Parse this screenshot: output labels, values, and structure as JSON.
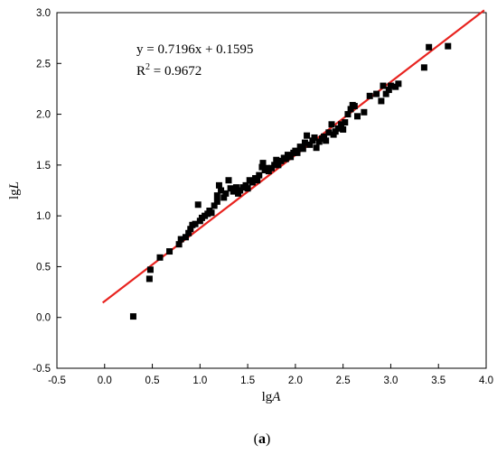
{
  "chart_data": {
    "type": "scatter",
    "xlabel_prefix": "lg",
    "xlabel_var": "A",
    "ylabel_prefix": "lg",
    "ylabel_var": "L",
    "xlim": [
      -0.5,
      4.0
    ],
    "ylim": [
      -0.5,
      3.0
    ],
    "xticks": [
      "-0.5",
      "0.0",
      "0.5",
      "1.0",
      "1.5",
      "2.0",
      "2.5",
      "3.0",
      "3.5",
      "4.0"
    ],
    "yticks": [
      "-0.5",
      "0.0",
      "0.5",
      "1.0",
      "1.5",
      "2.0",
      "2.5",
      "3.0"
    ],
    "grid": false,
    "annotation": {
      "equation": "y = 0.7196x + 0.1595",
      "r2_prefix": "R",
      "r2_sup": "2",
      "r2_suffix": " = 0.9672"
    },
    "series": [
      {
        "type": "scatter",
        "color": "#000000",
        "points": [
          [
            0.3,
            0.01
          ],
          [
            0.47,
            0.38
          ],
          [
            0.48,
            0.47
          ],
          [
            0.58,
            0.59
          ],
          [
            0.68,
            0.65
          ],
          [
            0.78,
            0.72
          ],
          [
            0.8,
            0.77
          ],
          [
            0.85,
            0.79
          ],
          [
            0.88,
            0.83
          ],
          [
            0.9,
            0.87
          ],
          [
            0.92,
            0.91
          ],
          [
            0.95,
            0.92
          ],
          [
            0.98,
            1.11
          ],
          [
            1.0,
            0.95
          ],
          [
            1.02,
            0.98
          ],
          [
            1.05,
            1.0
          ],
          [
            1.08,
            1.02
          ],
          [
            1.1,
            1.05
          ],
          [
            1.12,
            1.03
          ],
          [
            1.15,
            1.1
          ],
          [
            1.18,
            1.14
          ],
          [
            1.18,
            1.2
          ],
          [
            1.2,
            1.3
          ],
          [
            1.22,
            1.25
          ],
          [
            1.25,
            1.18
          ],
          [
            1.27,
            1.22
          ],
          [
            1.3,
            1.35
          ],
          [
            1.32,
            1.27
          ],
          [
            1.35,
            1.24
          ],
          [
            1.38,
            1.28
          ],
          [
            1.4,
            1.22
          ],
          [
            1.42,
            1.25
          ],
          [
            1.45,
            1.28
          ],
          [
            1.48,
            1.3
          ],
          [
            1.5,
            1.27
          ],
          [
            1.52,
            1.35
          ],
          [
            1.55,
            1.33
          ],
          [
            1.58,
            1.37
          ],
          [
            1.6,
            1.35
          ],
          [
            1.62,
            1.4
          ],
          [
            1.65,
            1.48
          ],
          [
            1.66,
            1.52
          ],
          [
            1.68,
            1.45
          ],
          [
            1.7,
            1.47
          ],
          [
            1.72,
            1.44
          ],
          [
            1.75,
            1.47
          ],
          [
            1.78,
            1.5
          ],
          [
            1.8,
            1.55
          ],
          [
            1.82,
            1.5
          ],
          [
            1.85,
            1.54
          ],
          [
            1.88,
            1.57
          ],
          [
            1.9,
            1.56
          ],
          [
            1.92,
            1.6
          ],
          [
            1.95,
            1.58
          ],
          [
            1.98,
            1.62
          ],
          [
            2.0,
            1.64
          ],
          [
            2.02,
            1.62
          ],
          [
            2.05,
            1.68
          ],
          [
            2.08,
            1.66
          ],
          [
            2.1,
            1.72
          ],
          [
            2.12,
            1.79
          ],
          [
            2.15,
            1.7
          ],
          [
            2.18,
            1.74
          ],
          [
            2.2,
            1.77
          ],
          [
            2.22,
            1.67
          ],
          [
            2.25,
            1.73
          ],
          [
            2.28,
            1.76
          ],
          [
            2.3,
            1.78
          ],
          [
            2.32,
            1.74
          ],
          [
            2.35,
            1.82
          ],
          [
            2.38,
            1.9
          ],
          [
            2.4,
            1.8
          ],
          [
            2.42,
            1.83
          ],
          [
            2.45,
            1.86
          ],
          [
            2.48,
            1.9
          ],
          [
            2.5,
            1.85
          ],
          [
            2.52,
            1.92
          ],
          [
            2.55,
            2.0
          ],
          [
            2.58,
            2.05
          ],
          [
            2.6,
            2.09
          ],
          [
            2.62,
            2.08
          ],
          [
            2.65,
            1.98
          ],
          [
            2.72,
            2.02
          ],
          [
            2.78,
            2.18
          ],
          [
            2.85,
            2.2
          ],
          [
            2.9,
            2.13
          ],
          [
            2.92,
            2.28
          ],
          [
            2.95,
            2.2
          ],
          [
            2.98,
            2.24
          ],
          [
            3.0,
            2.28
          ],
          [
            3.05,
            2.27
          ],
          [
            3.08,
            2.3
          ],
          [
            3.35,
            2.46
          ],
          [
            3.4,
            2.66
          ],
          [
            3.6,
            2.67
          ]
        ]
      },
      {
        "type": "line",
        "color": "#e8231f",
        "slope": 0.7196,
        "intercept": 0.1595,
        "x_range": [
          -0.02,
          3.98
        ]
      }
    ]
  },
  "caption": {
    "open": "(",
    "letter": "a",
    "close": ")"
  }
}
